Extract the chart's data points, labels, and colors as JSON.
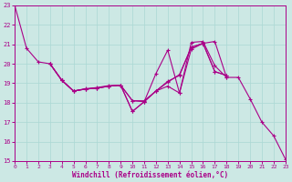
{
  "xlabel": "Windchill (Refroidissement éolien,°C)",
  "background_color": "#cce8e4",
  "line_color": "#aa0088",
  "grid_color": "#aad8d4",
  "series": [
    {
      "x": [
        0,
        1,
        2,
        3,
        4,
        5,
        6,
        7,
        8,
        9,
        10,
        11,
        12,
        13,
        14,
        15,
        16,
        17,
        18,
        19,
        20,
        21,
        22,
        23
      ],
      "y": [
        23.0,
        20.8,
        20.1,
        20.0,
        19.15,
        18.6,
        18.7,
        18.75,
        18.85,
        18.9,
        17.55,
        18.05,
        18.6,
        18.85,
        18.5,
        20.75,
        21.05,
        21.15,
        19.3,
        19.3,
        18.2,
        17.0,
        16.3,
        15.1
      ]
    },
    {
      "x": [
        3,
        4,
        5,
        6,
        7,
        8,
        9,
        10,
        11,
        12,
        13,
        14,
        15,
        16,
        17,
        18
      ],
      "y": [
        20.0,
        19.15,
        18.6,
        18.7,
        18.75,
        18.85,
        18.9,
        17.55,
        18.05,
        19.5,
        20.7,
        18.5,
        21.1,
        21.15,
        19.9,
        19.3
      ]
    },
    {
      "x": [
        3,
        4,
        5,
        6,
        7,
        8,
        9,
        10,
        11,
        12,
        13,
        14,
        15,
        16,
        17,
        18
      ],
      "y": [
        20.0,
        19.15,
        18.6,
        18.7,
        18.75,
        18.85,
        18.9,
        18.1,
        18.1,
        18.6,
        19.05,
        19.45,
        20.85,
        21.05,
        19.6,
        19.4
      ]
    },
    {
      "x": [
        3,
        4,
        5,
        6,
        7,
        8,
        9,
        10,
        11,
        12,
        13,
        14,
        15,
        16,
        17,
        18
      ],
      "y": [
        20.0,
        19.15,
        18.6,
        18.72,
        18.78,
        18.88,
        18.9,
        18.1,
        18.05,
        18.6,
        19.1,
        19.4,
        20.85,
        21.05,
        19.6,
        19.4
      ]
    }
  ],
  "xlim": [
    0,
    23
  ],
  "ylim": [
    15,
    23
  ],
  "yticks": [
    15,
    16,
    17,
    18,
    19,
    20,
    21,
    22,
    23
  ],
  "xticks": [
    0,
    1,
    2,
    3,
    4,
    5,
    6,
    7,
    8,
    9,
    10,
    11,
    12,
    13,
    14,
    15,
    16,
    17,
    18,
    19,
    20,
    21,
    22,
    23
  ]
}
